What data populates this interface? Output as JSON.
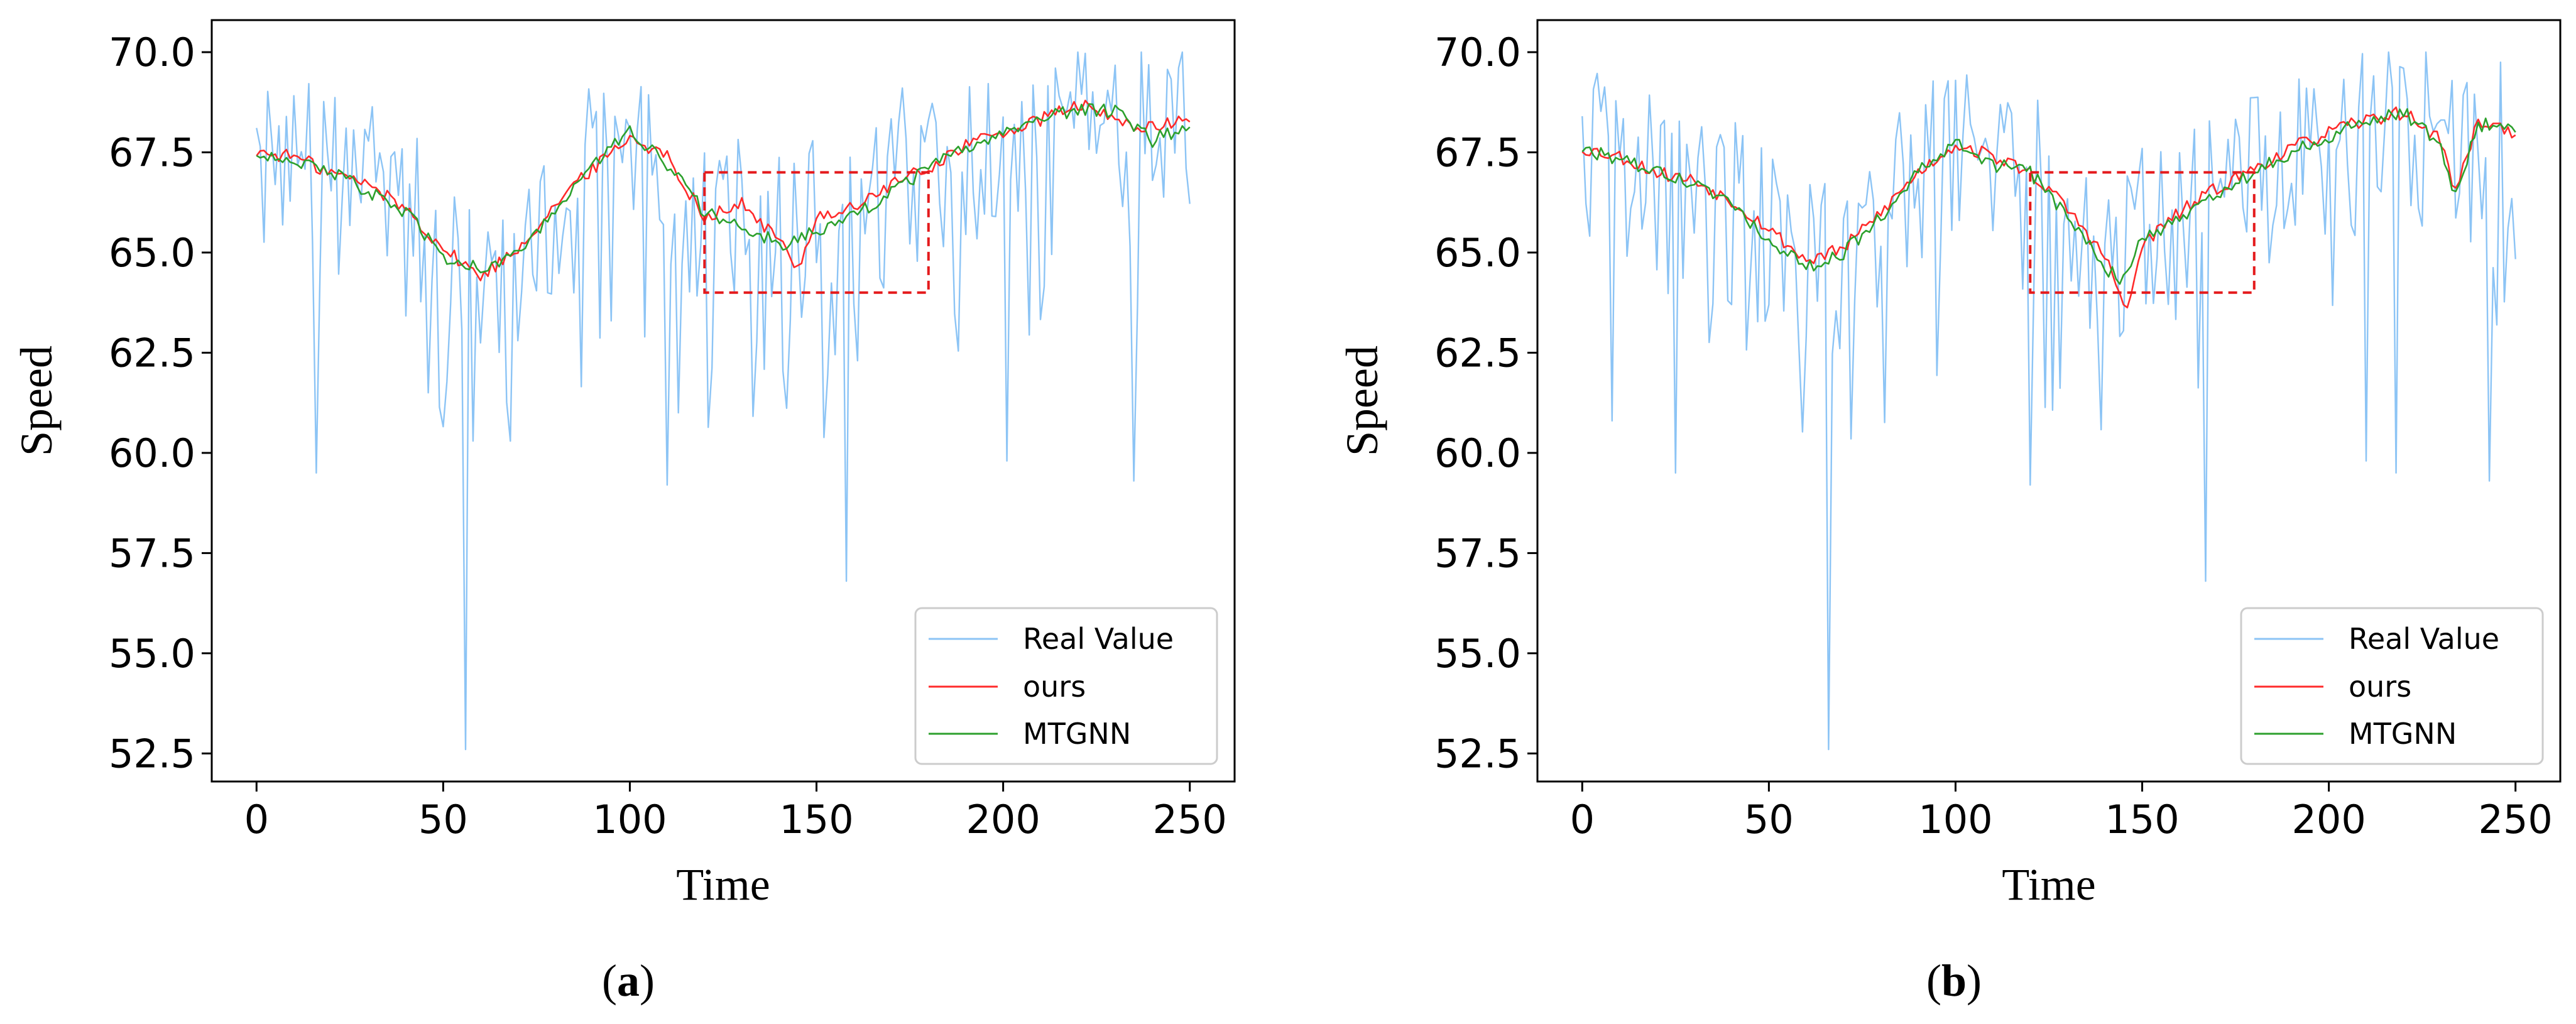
{
  "chart_data": [
    {
      "type": "line",
      "panel_label": "a",
      "xlabel": "Time",
      "ylabel": "Speed",
      "xlim": [
        -12,
        262
      ],
      "ylim": [
        51.8,
        70.8
      ],
      "xticks": [
        0,
        50,
        100,
        150,
        200,
        250
      ],
      "yticks": [
        52.5,
        55.0,
        57.5,
        60.0,
        62.5,
        65.0,
        67.5,
        70.0
      ],
      "ytick_labels": [
        "52.5",
        "55.0",
        "57.5",
        "60.0",
        "62.5",
        "65.0",
        "67.5",
        "70.0"
      ],
      "xtick_labels": [
        "0",
        "50",
        "100",
        "150",
        "200",
        "250"
      ],
      "legend_position": "lower-right",
      "highlight_box": {
        "x": [
          120,
          180
        ],
        "y": [
          64.0,
          67.0
        ],
        "color": "#e41a1c"
      },
      "series": [
        {
          "name": "Real Value",
          "color": "#8cc4f5",
          "noise_seed": 11,
          "spikes": [
            [
              16,
              59.5
            ],
            [
              56,
              52.6
            ],
            [
              110,
              59.2
            ],
            [
              158,
              56.8
            ],
            [
              201,
              59.8
            ],
            [
              235,
              59.3
            ],
            [
              113,
              61.0
            ],
            [
              46,
              61.5
            ],
            [
              70,
              62.8
            ]
          ],
          "x": [
            0,
            10,
            20,
            30,
            40,
            50,
            60,
            70,
            80,
            90,
            100,
            110,
            120,
            130,
            140,
            150,
            160,
            170,
            180,
            190,
            200,
            210,
            220,
            230,
            240,
            250
          ],
          "values": [
            67.5,
            67.3,
            67.0,
            66.5,
            66.0,
            65.0,
            64.6,
            65.2,
            66.0,
            67.0,
            67.8,
            67.2,
            66.0,
            65.6,
            65.2,
            65.8,
            66.0,
            66.8,
            67.2,
            67.8,
            68.0,
            68.4,
            68.6,
            68.4,
            68.2,
            68.3
          ]
        },
        {
          "name": "ours",
          "color": "#ff2a2a",
          "x": [
            0,
            10,
            20,
            30,
            40,
            50,
            60,
            70,
            80,
            90,
            100,
            110,
            120,
            130,
            140,
            145,
            150,
            160,
            170,
            180,
            190,
            200,
            210,
            220,
            230,
            240,
            250
          ],
          "values": [
            67.5,
            67.4,
            67.0,
            66.7,
            66.1,
            65.1,
            64.4,
            65.1,
            66.2,
            67.1,
            67.9,
            67.4,
            65.9,
            66.2,
            65.3,
            64.6,
            65.9,
            66.1,
            66.7,
            67.1,
            67.7,
            68.0,
            68.3,
            68.7,
            68.3,
            68.1,
            68.3
          ]
        },
        {
          "name": "MTGNN",
          "color": "#2ca02c",
          "x": [
            0,
            10,
            20,
            30,
            40,
            50,
            60,
            70,
            80,
            90,
            100,
            110,
            120,
            130,
            140,
            150,
            160,
            170,
            180,
            190,
            200,
            210,
            220,
            230,
            240,
            250
          ],
          "values": [
            67.5,
            67.3,
            67.0,
            66.5,
            66.0,
            64.9,
            64.6,
            65.0,
            66.0,
            67.2,
            68.0,
            67.2,
            66.0,
            65.7,
            65.2,
            65.5,
            65.9,
            66.5,
            67.1,
            67.6,
            68.0,
            68.3,
            68.6,
            68.5,
            67.8,
            68.2
          ]
        }
      ]
    },
    {
      "type": "line",
      "panel_label": "b",
      "xlabel": "Time",
      "ylabel": "Speed",
      "xlim": [
        -12,
        262
      ],
      "ylim": [
        51.8,
        70.8
      ],
      "xticks": [
        0,
        50,
        100,
        150,
        200,
        250
      ],
      "yticks": [
        52.5,
        55.0,
        57.5,
        60.0,
        62.5,
        65.0,
        67.5,
        70.0
      ],
      "ytick_labels": [
        "52.5",
        "55.0",
        "57.5",
        "60.0",
        "62.5",
        "65.0",
        "67.5",
        "70.0"
      ],
      "xtick_labels": [
        "0",
        "50",
        "100",
        "150",
        "200",
        "250"
      ],
      "legend_position": "lower-right",
      "highlight_box": {
        "x": [
          120,
          180
        ],
        "y": [
          64.0,
          67.0
        ],
        "color": "#e41a1c"
      },
      "series": [
        {
          "name": "Real Value",
          "color": "#8cc4f5",
          "noise_seed": 23,
          "spikes": [
            [
              66,
              52.6
            ],
            [
              8,
              60.8
            ],
            [
              25,
              59.5
            ],
            [
              120,
              59.2
            ],
            [
              167,
              56.8
            ],
            [
              210,
              59.8
            ],
            [
              243,
              59.3
            ],
            [
              218,
              59.5
            ]
          ],
          "x": [
            0,
            10,
            20,
            30,
            40,
            50,
            60,
            70,
            80,
            90,
            100,
            110,
            120,
            130,
            140,
            150,
            160,
            170,
            180,
            190,
            200,
            210,
            220,
            230,
            240,
            250
          ],
          "values": [
            67.6,
            67.3,
            67.0,
            66.7,
            66.2,
            65.4,
            64.8,
            65.0,
            65.8,
            66.8,
            67.7,
            67.3,
            67.0,
            66.0,
            64.8,
            65.4,
            65.8,
            66.4,
            67.0,
            67.5,
            67.9,
            68.2,
            68.5,
            67.5,
            67.0,
            68.2
          ]
        },
        {
          "name": "ours",
          "color": "#ff2a2a",
          "x": [
            0,
            10,
            20,
            30,
            40,
            50,
            60,
            70,
            80,
            90,
            100,
            110,
            120,
            130,
            140,
            146,
            150,
            160,
            170,
            180,
            190,
            200,
            210,
            220,
            230,
            234,
            240,
            250
          ],
          "values": [
            67.6,
            67.4,
            67.0,
            66.8,
            66.3,
            65.6,
            64.8,
            65.1,
            66.0,
            67.0,
            67.7,
            67.4,
            67.0,
            66.1,
            64.9,
            63.5,
            65.2,
            66.0,
            66.6,
            67.1,
            67.6,
            68.0,
            68.3,
            68.5,
            67.8,
            66.5,
            68.3,
            68.0
          ]
        },
        {
          "name": "MTGNN",
          "color": "#2ca02c",
          "x": [
            0,
            10,
            20,
            30,
            40,
            50,
            60,
            70,
            80,
            90,
            100,
            110,
            120,
            130,
            140,
            145,
            150,
            160,
            170,
            180,
            190,
            200,
            210,
            220,
            230,
            234,
            240,
            250
          ],
          "values": [
            67.6,
            67.3,
            67.0,
            66.7,
            66.2,
            65.3,
            64.6,
            65.0,
            65.9,
            67.0,
            67.7,
            67.2,
            67.0,
            65.9,
            64.6,
            64.3,
            65.4,
            65.8,
            66.5,
            67.0,
            67.5,
            67.9,
            68.3,
            68.5,
            67.7,
            66.4,
            68.2,
            68.1
          ]
        }
      ]
    }
  ]
}
